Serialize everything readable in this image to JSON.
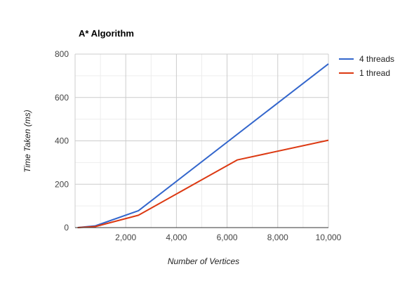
{
  "chart_data": {
    "type": "line",
    "title": "A* Algorithm",
    "xlabel": "Number of Vertices",
    "ylabel": "Time Taken (ms)",
    "xlim": [
      0,
      10000
    ],
    "ylim": [
      0,
      800
    ],
    "x_ticks": [
      2000,
      4000,
      6000,
      8000,
      10000
    ],
    "x_tick_labels": [
      "2,000",
      "4,000",
      "6,000",
      "8,000",
      "10,000"
    ],
    "y_ticks": [
      0,
      200,
      400,
      600,
      800
    ],
    "y_tick_labels": [
      "0",
      "200",
      "400",
      "600",
      "800"
    ],
    "minor_x_gridlines": [
      1000,
      3000,
      5000,
      7000,
      9000
    ],
    "minor_y_gridlines": [
      100,
      300,
      500,
      700
    ],
    "grid": true,
    "legend_position": "right",
    "series": [
      {
        "name": "4 threads",
        "color": "#3366cc",
        "x": [
          100,
          800,
          2500,
          10000
        ],
        "y": [
          0,
          8,
          78,
          755
        ]
      },
      {
        "name": "1 thread",
        "color": "#dc3912",
        "x": [
          100,
          800,
          2500,
          6400,
          10000
        ],
        "y": [
          0,
          5,
          57,
          312,
          403
        ]
      }
    ]
  }
}
